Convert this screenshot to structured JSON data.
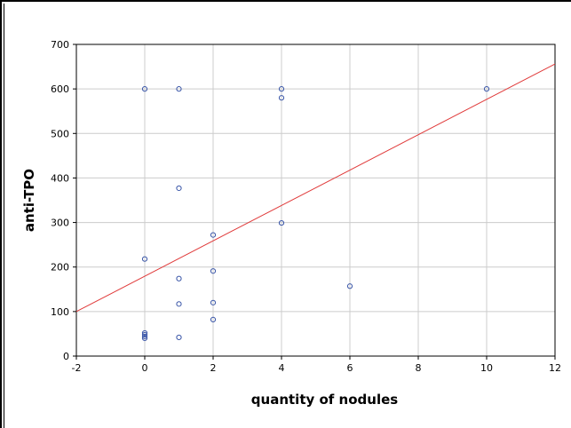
{
  "chart_data": {
    "type": "scatter",
    "xlabel": "quantity of nodules",
    "ylabel": "anti-TPO",
    "xlim": [
      -2,
      12
    ],
    "ylim": [
      0,
      700
    ],
    "xticks": [
      -2,
      0,
      2,
      4,
      6,
      8,
      10,
      12
    ],
    "yticks": [
      0,
      100,
      200,
      300,
      400,
      500,
      600,
      700
    ],
    "grid": true,
    "legend": "none",
    "colors": {
      "points": "#3a56a8",
      "fit_line": "#e03a3a",
      "grid": "#cccccc",
      "axis": "#000000"
    },
    "series": [
      {
        "points": [
          [
            0,
            600
          ],
          [
            0,
            218
          ],
          [
            0,
            52
          ],
          [
            0,
            48
          ],
          [
            0,
            44
          ],
          [
            0,
            40
          ],
          [
            1,
            600
          ],
          [
            1,
            377
          ],
          [
            1,
            174
          ],
          [
            1,
            117
          ],
          [
            1,
            42
          ],
          [
            2,
            272
          ],
          [
            2,
            191
          ],
          [
            2,
            120
          ],
          [
            2,
            82
          ],
          [
            4,
            600
          ],
          [
            4,
            580
          ],
          [
            4,
            299
          ],
          [
            6,
            157
          ],
          [
            10,
            600
          ]
        ]
      }
    ],
    "fit_line": {
      "type": "linear",
      "points": [
        [
          -2,
          100
        ],
        [
          12,
          656
        ]
      ]
    }
  }
}
